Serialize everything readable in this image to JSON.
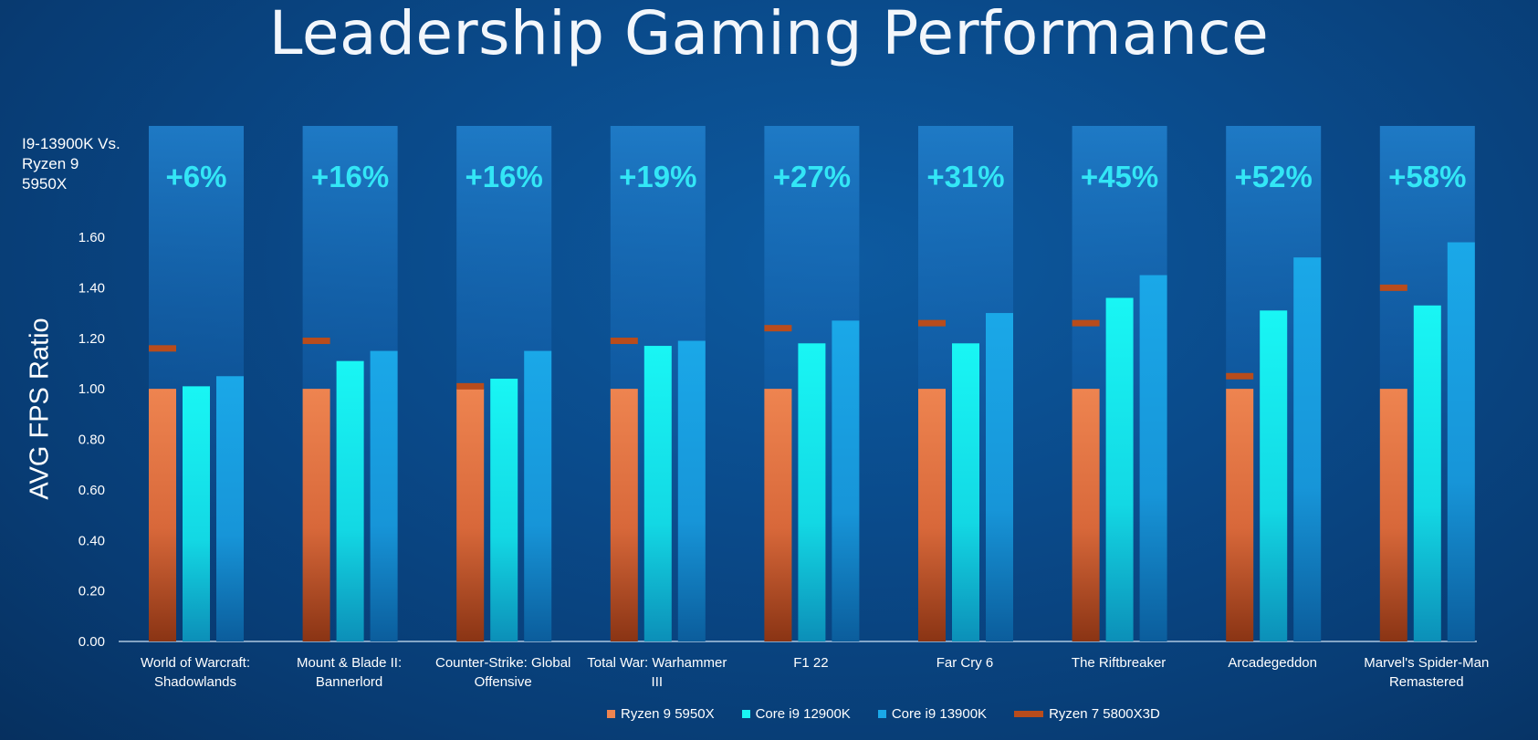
{
  "slide": {
    "title": "Leadership Gaming Performance",
    "comparison_label": "I9-13900K Vs. Ryzen 9 5950X"
  },
  "colors": {
    "ryzen_5950x": "#ee8450",
    "core_12900k": "#19f6f4",
    "core_13900k": "#1aa8e8",
    "ryzen_5800x3d": "#b84c1c",
    "percent_text": "#33e6f6"
  },
  "chart_data": {
    "type": "bar",
    "title": "Leadership Gaming Performance",
    "xlabel": "",
    "ylabel": "AVG  FPS Ratio",
    "ylim": [
      0,
      1.6
    ],
    "yticks": [
      0.0,
      0.2,
      0.4,
      0.6,
      0.8,
      1.0,
      1.2,
      1.4,
      1.6
    ],
    "ytick_labels": [
      "0.00",
      "0.20",
      "0.40",
      "0.60",
      "0.80",
      "1.00",
      "1.20",
      "1.40",
      "1.60"
    ],
    "grid": false,
    "legend_position": "bottom",
    "categories": [
      "World of Warcraft: Shadowlands",
      "Mount & Blade II: Bannerlord",
      "Counter-Strike: Global Offensive",
      "Total War: Warhammer III",
      "F1 22",
      "Far Cry 6",
      "The Riftbreaker",
      "Arcadegeddon",
      "Marvel's Spider-Man Remastered"
    ],
    "category_label_lines": [
      [
        "World of Warcraft:",
        "Shadowlands"
      ],
      [
        "Mount & Blade II:",
        "Bannerlord"
      ],
      [
        "Counter-Strike: Global",
        "Offensive"
      ],
      [
        "Total War: Warhammer",
        "III"
      ],
      [
        "F1 22"
      ],
      [
        "Far Cry 6"
      ],
      [
        "The Riftbreaker"
      ],
      [
        "Arcadegeddon"
      ],
      [
        "Marvel's Spider-Man",
        "Remastered"
      ]
    ],
    "percent_gains": [
      "+6%",
      "+16%",
      "+16%",
      "+19%",
      "+27%",
      "+31%",
      "+45%",
      "+52%",
      "+58%"
    ],
    "series": [
      {
        "name": "Ryzen 9 5950X",
        "kind": "bar",
        "values": [
          1.0,
          1.0,
          1.0,
          1.0,
          1.0,
          1.0,
          1.0,
          1.0,
          1.0
        ]
      },
      {
        "name": "Core i9 12900K",
        "kind": "bar",
        "values": [
          1.01,
          1.11,
          1.04,
          1.17,
          1.18,
          1.18,
          1.36,
          1.31,
          1.33
        ]
      },
      {
        "name": "Core i9 13900K",
        "kind": "bar",
        "values": [
          1.05,
          1.15,
          1.15,
          1.19,
          1.27,
          1.3,
          1.45,
          1.52,
          1.58
        ]
      },
      {
        "name": "Ryzen 7 5800X3D",
        "kind": "marker",
        "values": [
          1.16,
          1.19,
          1.01,
          1.19,
          1.24,
          1.26,
          1.26,
          1.05,
          1.4
        ]
      }
    ]
  }
}
